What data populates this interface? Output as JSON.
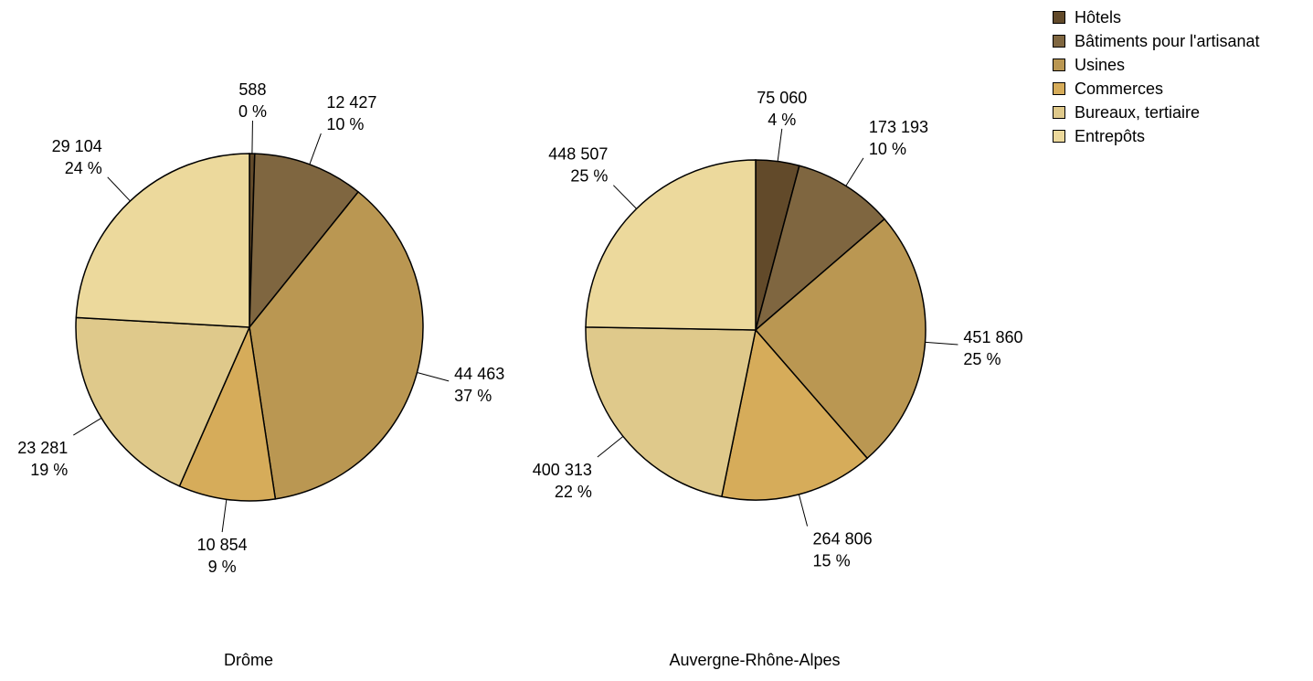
{
  "chart_data": {
    "type": "pie",
    "categories": [
      "Hôtels",
      "Bâtiments pour l'artisanat",
      "Usines",
      "Commerces",
      "Bureaux, tertiaire",
      "Entrepôts"
    ],
    "colors": [
      "#624a2a",
      "#7f6640",
      "#ba9752",
      "#d6ac5a",
      "#dfc98b",
      "#ecd99c"
    ],
    "legend_position": "top-right",
    "pies": [
      {
        "title": "Drôme",
        "values": [
          588,
          12427,
          44463,
          10854,
          23281,
          29104
        ],
        "value_labels": [
          "588",
          "12 427",
          "44 463",
          "10 854",
          "23 281",
          "29 104"
        ],
        "percent_labels": [
          "0 %",
          "10 %",
          "37 %",
          "9 %",
          "19 %",
          "24 %"
        ]
      },
      {
        "title": "Auvergne-Rhône-Alpes",
        "values": [
          75060,
          173193,
          451860,
          264806,
          400313,
          448507
        ],
        "value_labels": [
          "75 060",
          "173 193",
          "451 860",
          "264 806",
          "400 313",
          "448 507"
        ],
        "percent_labels": [
          "4 %",
          "10 %",
          "25 %",
          "15 %",
          "22 %",
          "25 %"
        ]
      }
    ]
  }
}
